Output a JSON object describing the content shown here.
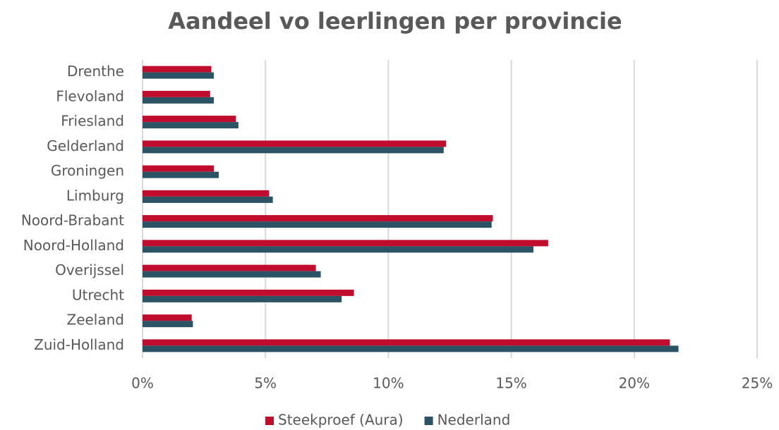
{
  "chart_data": {
    "type": "bar",
    "orientation": "horizontal",
    "title": "Aandeel vo leerlingen per provincie",
    "categories": [
      "Drenthe",
      "Flevoland",
      "Friesland",
      "Gelderland",
      "Groningen",
      "Limburg",
      "Noord-Brabant",
      "Noord-Holland",
      "Overijssel",
      "Utrecht",
      "Zeeland",
      "Zuid-Holland"
    ],
    "series": [
      {
        "name": "Steekproef (Aura)",
        "color": "#c00d2e",
        "values": [
          2.8,
          2.75,
          3.8,
          12.35,
          2.9,
          5.15,
          14.25,
          16.5,
          7.05,
          8.6,
          2.0,
          21.45
        ]
      },
      {
        "name": "Nederland",
        "color": "#2b5364",
        "values": [
          2.9,
          2.9,
          3.9,
          12.25,
          3.1,
          5.3,
          14.2,
          15.9,
          7.25,
          8.1,
          2.05,
          21.8
        ]
      }
    ],
    "xlim": [
      0,
      25
    ],
    "xticks": [
      {
        "value": 0,
        "label": "0%"
      },
      {
        "value": 5,
        "label": "5%"
      },
      {
        "value": 10,
        "label": "10%"
      },
      {
        "value": 15,
        "label": "15%"
      },
      {
        "value": 20,
        "label": "20%"
      },
      {
        "value": 25,
        "label": "25%"
      }
    ],
    "grid": true,
    "legend": "bottom"
  }
}
